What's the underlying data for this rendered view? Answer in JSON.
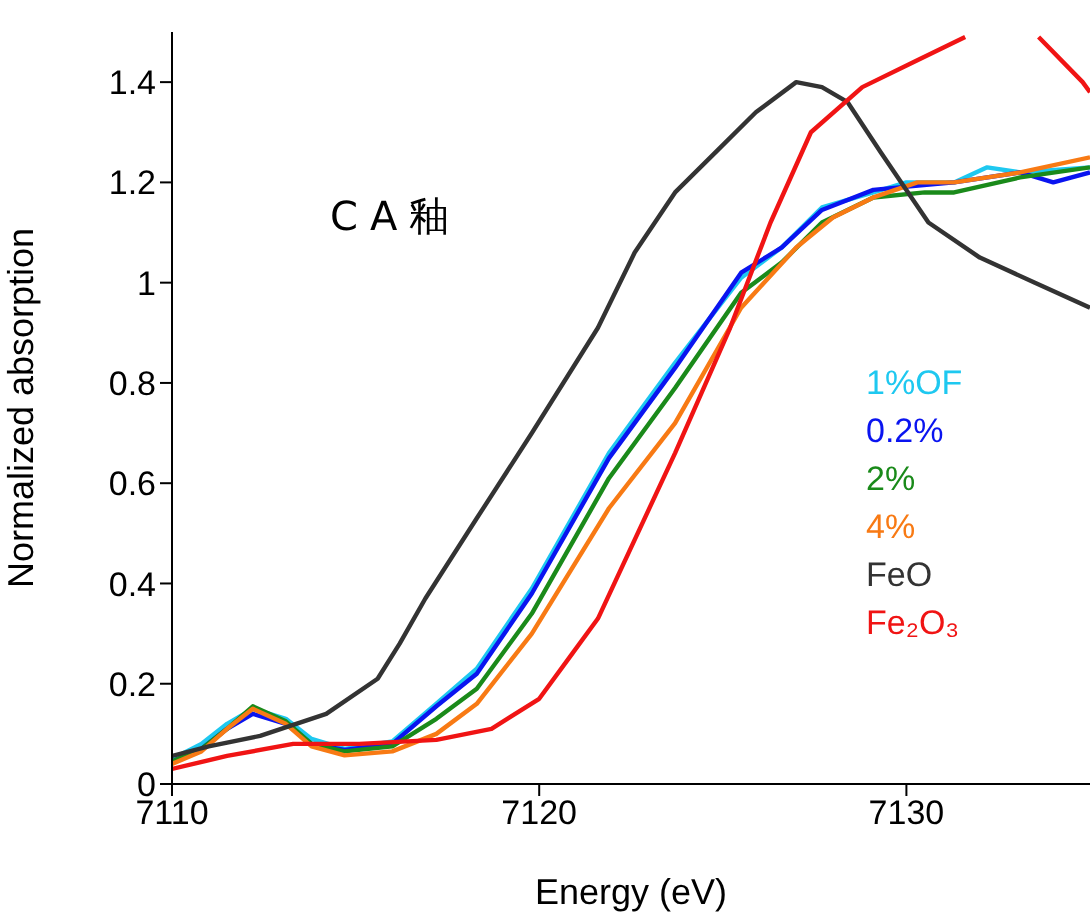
{
  "chart_data": {
    "type": "line",
    "xlabel": "Energy (eV)",
    "ylabel": "Normalized absorption",
    "annotations": [
      "CA釉"
    ],
    "xlim": [
      7110,
      7135
    ],
    "xticks": [
      7110,
      7120,
      7130
    ],
    "ylim": [
      0,
      1.5
    ],
    "yticks": [
      0,
      0.2,
      0.4,
      0.6,
      0.8,
      1,
      1.2,
      1.4
    ],
    "legend": "right",
    "grid": false,
    "marker": "none",
    "line_style": "solid",
    "series": [
      {
        "name": "1%OF",
        "color": "#1ec8f0",
        "x": [
          7110,
          7110.8,
          7111.5,
          7112.2,
          7113.1,
          7113.8,
          7114.7,
          7116,
          7117.2,
          7118.3,
          7119.8,
          7121.9,
          7123.7,
          7125.5,
          7126.6,
          7127.7,
          7129.1,
          7130,
          7131.3,
          7132.2,
          7133.1,
          7135
        ],
        "values": [
          0.05,
          0.08,
          0.12,
          0.15,
          0.13,
          0.09,
          0.07,
          0.085,
          0.16,
          0.23,
          0.39,
          0.66,
          0.84,
          1.01,
          1.07,
          1.15,
          1.18,
          1.2,
          1.2,
          1.23,
          1.22,
          1.23
        ]
      },
      {
        "name": "0.2%",
        "color": "#0a14f0",
        "x": [
          7110,
          7110.8,
          7111.5,
          7112.2,
          7113.1,
          7113.8,
          7114.7,
          7116,
          7117.2,
          7118.3,
          7119.8,
          7121.9,
          7123.7,
          7125.5,
          7126.6,
          7127.7,
          7129.1,
          7129.8,
          7131.3,
          7133.1,
          7134,
          7135
        ],
        "values": [
          0.045,
          0.07,
          0.11,
          0.14,
          0.12,
          0.08,
          0.068,
          0.08,
          0.155,
          0.22,
          0.38,
          0.65,
          0.83,
          1.02,
          1.07,
          1.145,
          1.185,
          1.19,
          1.2,
          1.22,
          1.2,
          1.22
        ]
      },
      {
        "name": "2%",
        "color": "#1a8a1a",
        "x": [
          7110,
          7110.8,
          7111.5,
          7112.2,
          7113.1,
          7113.8,
          7114.7,
          7116,
          7117.2,
          7118.3,
          7119.8,
          7121.9,
          7123.7,
          7125.5,
          7126.6,
          7127.7,
          7129.1,
          7130.5,
          7131.3,
          7133.1,
          7135
        ],
        "values": [
          0.045,
          0.07,
          0.11,
          0.155,
          0.125,
          0.08,
          0.065,
          0.075,
          0.13,
          0.19,
          0.34,
          0.61,
          0.79,
          0.98,
          1.04,
          1.12,
          1.17,
          1.18,
          1.18,
          1.21,
          1.23
        ]
      },
      {
        "name": "4%",
        "color": "#f87a14",
        "x": [
          7110,
          7110.8,
          7111.5,
          7112.2,
          7113.1,
          7113.8,
          7114.7,
          7116,
          7117.2,
          7118.3,
          7119.8,
          7121.9,
          7123.7,
          7125.5,
          7127,
          7128,
          7129.1,
          7130.3,
          7131.3,
          7133.1,
          7135
        ],
        "values": [
          0.04,
          0.065,
          0.11,
          0.15,
          0.12,
          0.075,
          0.057,
          0.065,
          0.1,
          0.16,
          0.3,
          0.55,
          0.72,
          0.95,
          1.07,
          1.13,
          1.17,
          1.2,
          1.2,
          1.22,
          1.25
        ]
      },
      {
        "name": "FeO",
        "color": "#333333",
        "x": [
          7110,
          7111,
          7112.4,
          7114.2,
          7115.6,
          7116.2,
          7116.9,
          7118.3,
          7119.8,
          7121.6,
          7122.6,
          7123.7,
          7124.8,
          7125.9,
          7127,
          7127.7,
          7128.4,
          7129.3,
          7130.6,
          7132,
          7133.5,
          7135
        ],
        "values": [
          0.056,
          0.075,
          0.096,
          0.14,
          0.21,
          0.28,
          0.37,
          0.53,
          0.7,
          0.91,
          1.06,
          1.18,
          1.26,
          1.34,
          1.4,
          1.39,
          1.36,
          1.26,
          1.12,
          1.05,
          1,
          0.95
        ]
      },
      {
        "name": "Fe₂O₃",
        "color": "#f01414",
        "x": [
          7110,
          7111.5,
          7113.3,
          7115.1,
          7117.2,
          7118.7,
          7120,
          7120.9,
          7121.6,
          7123.7,
          7125.2,
          7126.3,
          7127.4,
          7128.8,
          7130.2,
          7131.6,
          7132.5,
          7133.6,
          7134.8,
          7135
        ],
        "values": [
          0.03,
          0.056,
          0.08,
          0.08,
          0.088,
          0.11,
          0.17,
          0.26,
          0.33,
          0.66,
          0.91,
          1.12,
          1.3,
          1.39,
          1.44,
          1.49,
          null,
          1.49,
          1.4,
          1.38
        ]
      }
    ]
  }
}
